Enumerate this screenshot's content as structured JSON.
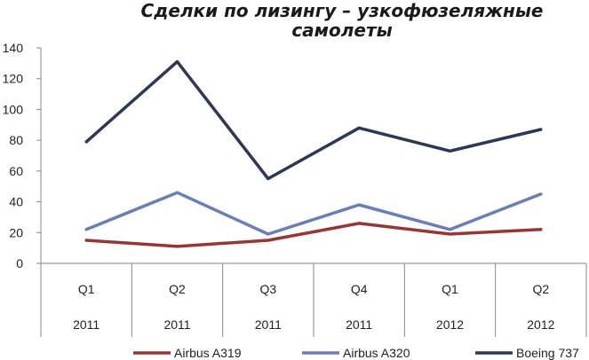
{
  "chart_data": {
    "type": "line",
    "title_lines": [
      "Сделки по лизингу – узкофюзеляжные",
      "самолеты"
    ],
    "categories": [
      {
        "quarter": "Q1",
        "year": "2011"
      },
      {
        "quarter": "Q2",
        "year": "2011"
      },
      {
        "quarter": "Q3",
        "year": "2011"
      },
      {
        "quarter": "Q4",
        "year": "2011"
      },
      {
        "quarter": "Q1",
        "year": "2012"
      },
      {
        "quarter": "Q2",
        "year": "2012"
      }
    ],
    "series": [
      {
        "name": "Airbus A319",
        "color": "#953735",
        "values": [
          15,
          11,
          15,
          26,
          19,
          22
        ]
      },
      {
        "name": "Airbus A320",
        "color": "#6b7fb5",
        "values": [
          22,
          46,
          19,
          38,
          22,
          45
        ]
      },
      {
        "name": "Boeing 737",
        "color": "#2e3753",
        "values": [
          79,
          131,
          55,
          88,
          73,
          87
        ]
      }
    ],
    "ylim": [
      0,
      140
    ],
    "yticks": [
      "0",
      "20",
      "40",
      "60",
      "80",
      "100",
      "120",
      "140"
    ],
    "legend_position": "bottom",
    "grid": false
  }
}
